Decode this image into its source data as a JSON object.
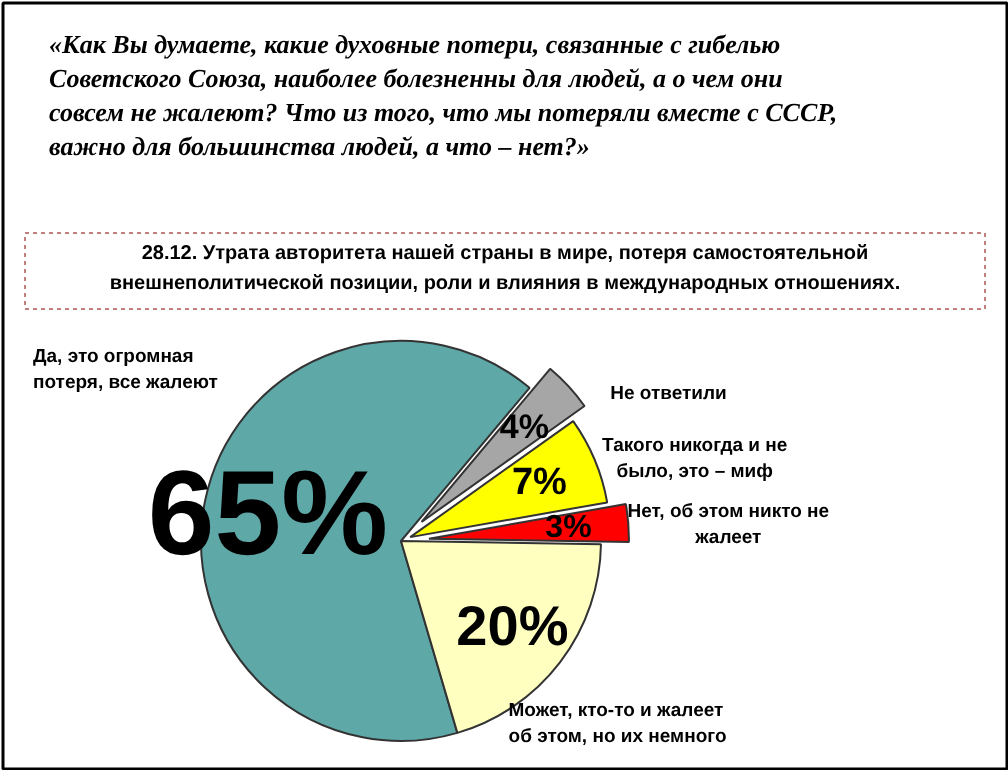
{
  "chart_data": {
    "type": "pie",
    "title": "«Как Вы думаете, какие духовные потери, связанные с гибелью Советского Союза, наиболее болезненны для людей, а о чем они совсем не жалеют? Что из того, что мы потеряли вместе с СССР, важно для большинства людей, а что – нет?»",
    "subtitle": "28.12. Утрата авторитета нашей страны в мире, потеря самостоятельной внешнеполитической позиции, роли и влияния в международных отношениях.",
    "categories": [
      "Да, это огромная потеря, все жалеют",
      "Не ответили",
      "Такого никогда и не было, это – миф",
      "Нет, об этом никто не жалеет",
      "Может, кто-то и жалеет об этом, но их немного"
    ],
    "values": [
      65,
      4,
      7,
      3,
      20
    ],
    "colors": [
      "#5fa8a8",
      "#a6a6a6",
      "#ffff00",
      "#ff0000",
      "#ffffc0"
    ],
    "value_labels": [
      "65%",
      "4%",
      "7%",
      "3%",
      "20%"
    ]
  }
}
